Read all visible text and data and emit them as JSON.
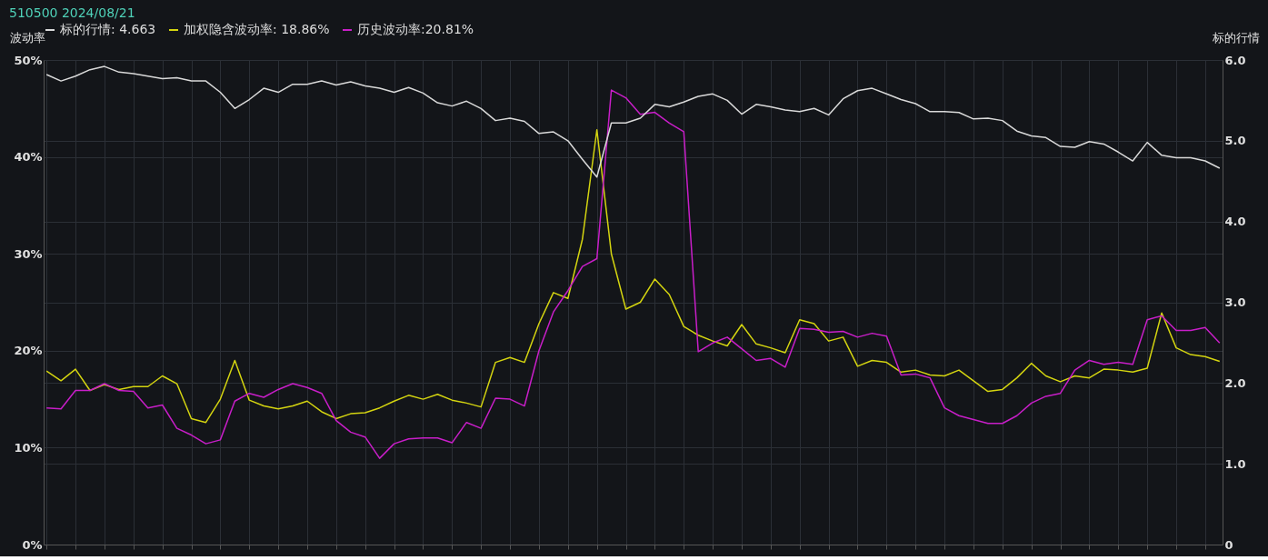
{
  "chart_data": {
    "type": "line",
    "title": "510500  2024/08/21",
    "ylabel": "波动率",
    "y2label": "标的行情",
    "categories": [
      null,
      null,
      null,
      null,
      null,
      null,
      null,
      null,
      null,
      null,
      null,
      null,
      null,
      null,
      null,
      null,
      null,
      null,
      null,
      null,
      null,
      null,
      null,
      null,
      null,
      null,
      null,
      null,
      null,
      null,
      null,
      null,
      null,
      null,
      null,
      null,
      null,
      null,
      null,
      null,
      null,
      null,
      null,
      null,
      null,
      null,
      null,
      null,
      null,
      null,
      null,
      null,
      null,
      null,
      null,
      null,
      null,
      null,
      null,
      null,
      null,
      null,
      null,
      null,
      null,
      null,
      null,
      null,
      null,
      null,
      null,
      null,
      null,
      null,
      null,
      null,
      null,
      null,
      null,
      null,
      null,
      null
    ],
    "series": [
      {
        "name": "标的行情: 4.663",
        "color": "#d9d9d9",
        "axis": "y2",
        "values": [
          5.82,
          5.74,
          5.8,
          5.88,
          5.92,
          5.85,
          5.83,
          5.8,
          5.77,
          5.78,
          5.74,
          5.74,
          5.6,
          5.4,
          5.51,
          5.65,
          5.6,
          5.7,
          5.7,
          5.74,
          5.69,
          5.73,
          5.68,
          5.65,
          5.6,
          5.66,
          5.59,
          5.47,
          5.43,
          5.49,
          5.4,
          5.25,
          5.28,
          5.24,
          5.09,
          5.11,
          5.0,
          4.77,
          4.55,
          5.22,
          5.22,
          5.28,
          5.45,
          5.42,
          5.48,
          5.55,
          5.58,
          5.5,
          5.33,
          5.45,
          5.42,
          5.38,
          5.36,
          5.4,
          5.32,
          5.52,
          5.62,
          5.65,
          5.58,
          5.51,
          5.46,
          5.36,
          5.36,
          5.35,
          5.27,
          5.28,
          5.25,
          5.12,
          5.06,
          5.04,
          4.93,
          4.92,
          4.99,
          4.96,
          4.86,
          4.75,
          4.98,
          4.82,
          4.79,
          4.79,
          4.75,
          4.66
        ]
      },
      {
        "name": "加权隐含波动率: 18.86%",
        "color": "#d4d410",
        "values": [
          17.9,
          16.9,
          18.1,
          15.9,
          16.5,
          16.0,
          16.3,
          16.3,
          17.4,
          16.6,
          13.0,
          12.6,
          15.0,
          19.0,
          14.9,
          14.3,
          14.0,
          14.3,
          14.8,
          13.7,
          13.0,
          13.5,
          13.6,
          14.1,
          14.8,
          15.4,
          15.0,
          15.5,
          14.9,
          14.6,
          14.2,
          18.8,
          19.3,
          18.8,
          22.8,
          26.0,
          25.4,
          31.5,
          42.8,
          30.0,
          24.3,
          25.0,
          27.4,
          25.8,
          22.5,
          21.6,
          21.0,
          20.5,
          22.7,
          20.7,
          20.3,
          19.8,
          23.2,
          22.8,
          21.0,
          21.4,
          18.4,
          19.0,
          18.8,
          17.8,
          18.0,
          17.5,
          17.4,
          18.0,
          16.9,
          15.8,
          16.0,
          17.2,
          18.7,
          17.4,
          16.8,
          17.4,
          17.2,
          18.1,
          18.0,
          17.8,
          18.2,
          23.9,
          20.3,
          19.6,
          19.4,
          18.9
        ]
      },
      {
        "name": "历史波动率:20.81%",
        "color": "#c81ec8",
        "values": [
          14.1,
          14.0,
          15.9,
          15.9,
          16.6,
          15.9,
          15.8,
          14.1,
          14.4,
          12.0,
          11.3,
          10.4,
          10.8,
          14.8,
          15.6,
          15.2,
          16.0,
          16.6,
          16.2,
          15.6,
          12.8,
          11.6,
          11.1,
          8.9,
          10.4,
          10.9,
          11.0,
          11.0,
          10.5,
          12.6,
          12.0,
          15.1,
          15.0,
          14.3,
          20.0,
          24.0,
          26.2,
          28.7,
          29.5,
          46.9,
          46.1,
          44.4,
          44.6,
          43.5,
          42.6,
          19.9,
          20.8,
          21.4,
          20.2,
          19.0,
          19.2,
          18.3,
          22.3,
          22.2,
          21.9,
          22.0,
          21.4,
          21.8,
          21.5,
          17.5,
          17.6,
          17.2,
          14.1,
          13.3,
          12.9,
          12.5,
          12.5,
          13.3,
          14.6,
          15.3,
          15.6,
          18.0,
          19.0,
          18.6,
          18.8,
          18.6,
          23.2,
          23.6,
          22.1,
          22.1,
          22.4,
          20.8
        ]
      }
    ],
    "ylim": [
      0,
      50
    ],
    "yticks": [
      {
        "value": 0,
        "label": "0%"
      },
      {
        "value": 10,
        "label": "10%"
      },
      {
        "value": 20,
        "label": "20%"
      },
      {
        "value": 30,
        "label": "30%"
      },
      {
        "value": 40,
        "label": "40%"
      },
      {
        "value": 50,
        "label": "50%"
      }
    ],
    "y2lim": [
      0,
      6
    ],
    "y2ticks": [
      0,
      {
        "value": 1,
        "label": "1.0"
      },
      {
        "value": 2,
        "label": "2.0"
      },
      {
        "value": 3,
        "label": "3.0"
      },
      {
        "value": 4,
        "label": "4.0"
      },
      {
        "value": 5,
        "label": "5.0"
      },
      {
        "value": 6,
        "label": "6.0"
      }
    ],
    "grid": true,
    "legend": "top",
    "tick_labels": "y",
    "marker": "none",
    "line_style": "solid"
  }
}
